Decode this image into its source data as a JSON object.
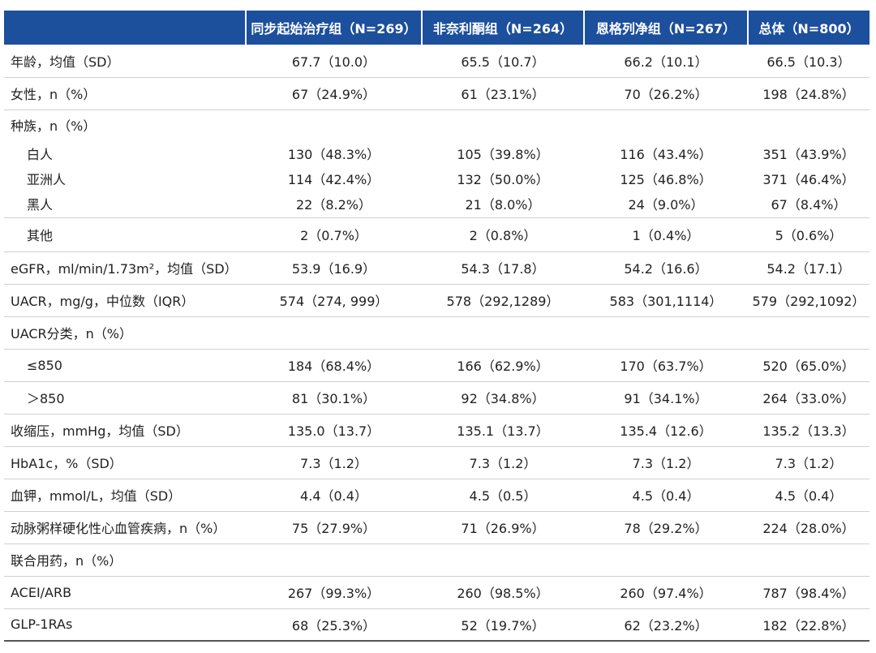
{
  "table": {
    "header": [
      "同步起始治疗组（N=269）",
      "非奈利酮组（N=264）",
      "恩格列净组（N=267）",
      "总体（N=800）"
    ],
    "rows": [
      {
        "label": "年龄，均值（SD）",
        "cells": [
          "67.7（10.0）",
          "65.5（10.7）",
          "66.2（10.1）",
          "66.5（10.3）"
        ]
      },
      {
        "label": "女性，n（%）",
        "cells": [
          "67（24.9%）",
          "61（23.1%）",
          "70（26.2%）",
          "198（24.8%）"
        ]
      },
      {
        "label": "种族，n（%）"
      },
      {
        "label": "白人",
        "cells": [
          "130（48.3%）",
          "105（39.8%）",
          "116（43.4%）",
          "351（43.9%）"
        ]
      },
      {
        "label": "亚洲人",
        "cells": [
          "114（42.4%）",
          "132（50.0%）",
          "125（46.8%）",
          "371（46.4%）"
        ]
      },
      {
        "label": "黑人",
        "cells": [
          "22（8.2%）",
          "21（8.0%）",
          "24（9.0%）",
          "67（8.4%）"
        ]
      },
      {
        "label": "其他",
        "cells": [
          "2（0.7%）",
          "2（0.8%）",
          "1（0.4%）",
          "5（0.6%）"
        ]
      },
      {
        "label": "eGFR，ml/min/1.73m²，均值（SD）",
        "cells": [
          "53.9（16.9）",
          "54.3（17.8）",
          "54.2（16.6）",
          "54.2（17.1）"
        ]
      },
      {
        "label": "UACR，mg/g，中位数（IQR）",
        "cells": [
          "574（274, 999）",
          "578（292,1289）",
          "583（301,1114）",
          "579（292,1092）"
        ]
      },
      {
        "label": "UACR分类，n（%）"
      },
      {
        "label": "≤850",
        "cells": [
          "184（68.4%）",
          "166（62.9%）",
          "170（63.7%）",
          "520（65.0%）"
        ]
      },
      {
        "label": "＞850",
        "cells": [
          "81（30.1%）",
          "92（34.8%）",
          "91（34.1%）",
          "264（33.0%）"
        ]
      },
      {
        "label": "收缩压，mmHg，均值（SD）",
        "cells": [
          "135.0（13.7）",
          "135.1（13.7）",
          "135.4（12.6）",
          "135.2（13.3）"
        ]
      },
      {
        "label": "HbA1c，%（SD）",
        "cells": [
          "7.3（1.2）",
          "7.3（1.2）",
          "7.3（1.2）",
          "7.3（1.2）"
        ]
      },
      {
        "label": "血钾，mmol/L，均值（SD）",
        "cells": [
          "4.4（0.4）",
          "4.5（0.5）",
          "4.5（0.4）",
          "4.5（0.4）"
        ]
      },
      {
        "label": "动脉粥样硬化性心血管疾病，n（%）",
        "cells": [
          "75（27.9%）",
          "71（26.9%）",
          "78（29.2%）",
          "224（28.0%）"
        ]
      },
      {
        "label": "联合用药，n（%）"
      },
      {
        "label": "ACEI/ARB",
        "cells": [
          "267（99.3%）",
          "260（98.5%）",
          "260（97.4%）",
          "787（98.4%）"
        ]
      },
      {
        "label": "GLP-1RAs",
        "cells": [
          "68（25.3%）",
          "52（19.7%）",
          "62（23.2%）",
          "182（22.8%）"
        ]
      }
    ]
  }
}
